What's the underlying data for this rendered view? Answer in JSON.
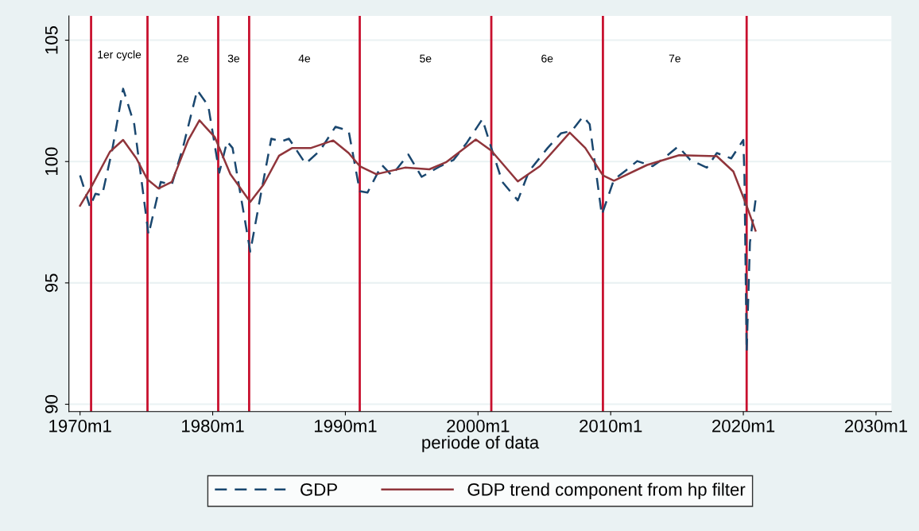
{
  "chart_data": {
    "type": "line",
    "xlabel": "periode of data",
    "xlim": [
      "1969-03",
      "2031-03"
    ],
    "ylim": [
      89.7,
      106
    ],
    "xticks": [
      {
        "value": "1970-01",
        "label": "1970m1"
      },
      {
        "value": "1980-01",
        "label": "1980m1"
      },
      {
        "value": "1990-01",
        "label": "1990m1"
      },
      {
        "value": "2000-01",
        "label": "2000m1"
      },
      {
        "value": "2010-01",
        "label": "2010m1"
      },
      {
        "value": "2020-01",
        "label": "2020m1"
      },
      {
        "value": "2030-01",
        "label": "2030m1"
      }
    ],
    "yticks": [
      90,
      95,
      100,
      105
    ],
    "grid": "y",
    "legend": "bottom",
    "series": [
      {
        "name": "GDP",
        "color": "#1a476f",
        "line_style": "dashed",
        "x": [
          "1970-01",
          "1970-10",
          "1971-03",
          "1971-09",
          "1972-06",
          "1973-04",
          "1974-02",
          "1975-03",
          "1976-02",
          "1976-12",
          "1977-10",
          "1978-11",
          "1979-09",
          "1980-07",
          "1981-02",
          "1981-07",
          "1982-11",
          "1983-08",
          "1984-06",
          "1985-03",
          "1985-10",
          "1987-01",
          "1988-02",
          "1989-04",
          "1990-04",
          "1991-02",
          "1991-09",
          "1992-10",
          "1993-07",
          "1994-10",
          "1995-10",
          "1997-03",
          "1998-03",
          "1999-03",
          "2000-05",
          "2001-01",
          "2001-11",
          "2003-01",
          "2003-11",
          "2005-04",
          "2006-04",
          "2007-02",
          "2007-12",
          "2008-06",
          "2009-05",
          "2010-04",
          "2011-03",
          "2012-01",
          "2013-03",
          "2014-01",
          "2015-02",
          "2016-01",
          "2017-04",
          "2018-01",
          "2019-02",
          "2020-01",
          "2020-02",
          "2020-04",
          "2020-07",
          "2020-12"
        ],
        "values": [
          99.43,
          98.13,
          98.67,
          98.61,
          100.45,
          103.0,
          101.54,
          96.99,
          99.16,
          99.05,
          100.56,
          102.94,
          102.3,
          99.54,
          100.83,
          100.56,
          96.29,
          98.51,
          100.94,
          100.83,
          100.94,
          99.91,
          100.45,
          101.43,
          101.27,
          98.78,
          98.72,
          99.86,
          99.43,
          100.29,
          99.37,
          99.81,
          100.07,
          100.78,
          101.75,
          100.56,
          99.16,
          98.4,
          99.59,
          100.56,
          101.16,
          101.27,
          101.86,
          101.54,
          97.8,
          99.26,
          99.64,
          100.02,
          99.81,
          100.13,
          100.62,
          100.07,
          99.75,
          100.35,
          100.13,
          100.89,
          99.37,
          92.17,
          96.67,
          98.4
        ]
      },
      {
        "name": "GDP trend component from hp filter",
        "color": "#90353b",
        "line_style": "solid",
        "x": [
          "1970-01",
          "1970-11",
          "1972-04",
          "1973-04",
          "1974-04",
          "1975-02",
          "1975-12",
          "1976-12",
          "1978-03",
          "1979-01",
          "1980-03",
          "1981-05",
          "1982-11",
          "1983-11",
          "1985-01",
          "1986-01",
          "1987-06",
          "1989-02",
          "1990-04",
          "1991-02",
          "1992-05",
          "1994-07",
          "1996-05",
          "1997-08",
          "1999-11",
          "2001-01",
          "2003-01",
          "2004-09",
          "2006-12",
          "2008-02",
          "2009-06",
          "2010-04",
          "2012-10",
          "2015-03",
          "2018-01",
          "2019-04",
          "2020-04",
          "2020-12"
        ],
        "values": [
          98.18,
          98.94,
          100.4,
          100.89,
          100.13,
          99.26,
          98.89,
          99.16,
          100.89,
          101.7,
          101.0,
          99.48,
          98.34,
          99.05,
          100.24,
          100.56,
          100.56,
          100.87,
          100.35,
          99.81,
          99.48,
          99.75,
          99.68,
          99.97,
          100.91,
          100.45,
          99.18,
          99.81,
          101.19,
          100.56,
          99.43,
          99.21,
          99.86,
          100.26,
          100.22,
          99.59,
          98.18,
          97.15
        ]
      }
    ],
    "ref_lines": [
      {
        "axis": "x",
        "value": "1970-11",
        "color": "#c8102e"
      },
      {
        "axis": "x",
        "value": "1975-02",
        "color": "#c8102e"
      },
      {
        "axis": "x",
        "value": "1980-06",
        "color": "#c8102e"
      },
      {
        "axis": "x",
        "value": "1982-10",
        "color": "#c8102e"
      },
      {
        "axis": "x",
        "value": "1991-02",
        "color": "#c8102e"
      },
      {
        "axis": "x",
        "value": "2001-01",
        "color": "#c8102e"
      },
      {
        "axis": "x",
        "value": "2009-06",
        "color": "#c8102e"
      },
      {
        "axis": "x",
        "value": "2020-04",
        "color": "#c8102e"
      }
    ],
    "annotations": [
      "1er cycle",
      "2e",
      "3e",
      "4e",
      "5e",
      "6e",
      "7e"
    ]
  }
}
